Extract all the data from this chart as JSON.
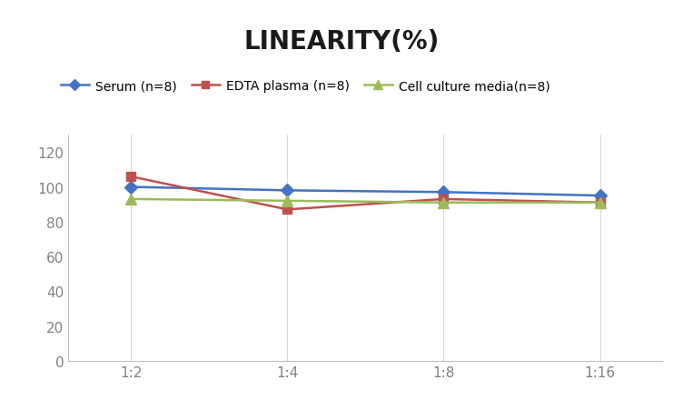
{
  "title": "LINEARITY(%)",
  "title_fontsize": 20,
  "title_fontweight": "bold",
  "x_labels": [
    "1:2",
    "1:4",
    "1:8",
    "1:16"
  ],
  "x_values": [
    0,
    1,
    2,
    3
  ],
  "series": [
    {
      "label": "Serum (n=8)",
      "values": [
        100,
        98,
        97,
        95
      ],
      "color": "#4472C4",
      "marker": "D",
      "markersize": 7,
      "linewidth": 1.8
    },
    {
      "label": "EDTA plasma (n=8)",
      "values": [
        106,
        87,
        93,
        91
      ],
      "color": "#C0504D",
      "marker": "s",
      "markersize": 7,
      "linewidth": 1.8
    },
    {
      "label": "Cell culture media(n=8)",
      "values": [
        93,
        92,
        91,
        91
      ],
      "color": "#9BBB59",
      "marker": "^",
      "markersize": 8,
      "linewidth": 1.8
    }
  ],
  "ylim": [
    0,
    130
  ],
  "yticks": [
    0,
    20,
    40,
    60,
    80,
    100,
    120
  ],
  "background_color": "#FFFFFF",
  "grid_color": "#D9D9D9",
  "tick_color": "#808080",
  "legend_fontsize": 10,
  "axis_fontsize": 11,
  "spine_color": "#C0C0C0"
}
